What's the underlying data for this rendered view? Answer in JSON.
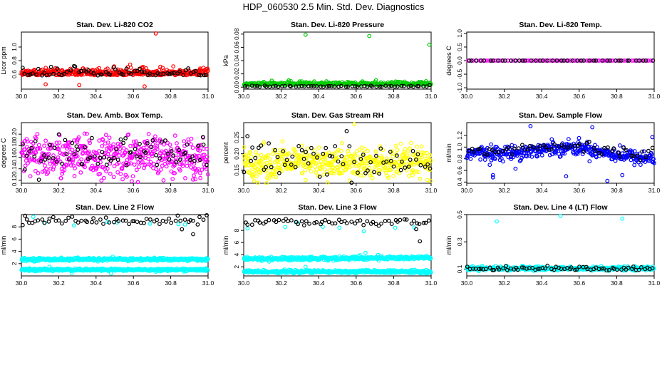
{
  "page": {
    "title": "HDP_060530  2.5 Min. Std. Dev. Diagnostics"
  },
  "chart_data": [
    {
      "type": "scatter",
      "title": "Stan. Dev. Li-820 CO2",
      "ylabel": "Licor ppm",
      "xlim": [
        30.0,
        31.0
      ],
      "ylim": [
        0.38,
        1.22
      ],
      "xticks": [
        30.0,
        30.2,
        30.4,
        30.6,
        30.8,
        31.0
      ],
      "yticks": [
        0.6,
        0.8,
        1.0
      ],
      "series": [
        {
          "color": "#ff0000",
          "n": 400,
          "base": [
            0.6,
            0.6
          ],
          "spread": 0.05,
          "skew": 1,
          "outliers": [
            [
              30.72,
              1.2
            ],
            [
              30.66,
              0.42
            ],
            [
              30.31,
              0.44
            ],
            [
              30.13,
              0.45
            ]
          ]
        },
        {
          "color": "#000000",
          "n": 70,
          "base": [
            0.6,
            0.6
          ],
          "spread": 0.06,
          "skew": 1,
          "outliers": []
        }
      ]
    },
    {
      "type": "scatter",
      "title": "Stan. Dev. Li-820 Pressure",
      "ylabel": "kPa",
      "xlim": [
        30.0,
        31.0
      ],
      "ylim": [
        -0.003,
        0.083
      ],
      "xticks": [
        30.0,
        30.2,
        30.4,
        30.6,
        30.8,
        31.0
      ],
      "yticks": [
        0.0,
        0.02,
        0.04,
        0.06,
        0.08
      ],
      "series": [
        {
          "color": "#00cc00",
          "n": 350,
          "base": [
            0.004,
            0.004
          ],
          "spread": 0.0025,
          "skew": 1,
          "outliers": [
            [
              30.33,
              0.079
            ],
            [
              30.67,
              0.077
            ],
            [
              30.99,
              0.064
            ]
          ]
        },
        {
          "color": "#000000",
          "n": 60,
          "base": [
            0.001,
            0.001
          ],
          "spread": 0.001,
          "skew": 1,
          "outliers": []
        }
      ]
    },
    {
      "type": "scatter",
      "title": "Stan. Dev. Li-820 Temp.",
      "ylabel": "degrees C",
      "xlim": [
        30.0,
        31.0
      ],
      "ylim": [
        -1.05,
        1.05
      ],
      "xticks": [
        30.0,
        30.2,
        30.4,
        30.6,
        30.8,
        31.0
      ],
      "yticks": [
        -1.0,
        -0.5,
        0.0,
        0.5,
        1.0
      ],
      "series": [
        {
          "color": "#ff00ff",
          "n": 95,
          "base": [
            0.0,
            0.0
          ],
          "spread": 0,
          "skew": 0,
          "outliers": []
        },
        {
          "color": "#000000",
          "n": 45,
          "base": [
            0.0,
            0.0
          ],
          "spread": 0,
          "skew": 0,
          "outliers": []
        }
      ]
    },
    {
      "type": "scatter",
      "title": "Stan. Dev. Amb. Box Temp.",
      "ylabel": "degrees C",
      "xlim": [
        30.0,
        31.0
      ],
      "ylim": [
        0.115,
        0.22
      ],
      "xticks": [
        30.0,
        30.2,
        30.4,
        30.6,
        30.8,
        31.0
      ],
      "yticks": [
        0.12,
        0.14,
        0.16,
        0.18,
        0.2
      ],
      "series": [
        {
          "color": "#ff00ff",
          "n": 480,
          "base": [
            0.16,
            0.16
          ],
          "spread": 0.018,
          "skew": 0,
          "outliers": []
        },
        {
          "color": "#000000",
          "n": 80,
          "base": [
            0.165,
            0.165
          ],
          "spread": 0.015,
          "skew": 0,
          "outliers": []
        }
      ]
    },
    {
      "type": "scatter",
      "title": "Stan. Dev. Gas Stream RH",
      "ylabel": "percent",
      "xlim": [
        30.0,
        31.0
      ],
      "ylim": [
        0.11,
        0.295
      ],
      "xticks": [
        30.0,
        30.2,
        30.4,
        30.6,
        30.8,
        31.0
      ],
      "yticks": [
        0.15,
        0.2,
        0.25
      ],
      "series": [
        {
          "color": "#ffff00",
          "n": 480,
          "base": [
            0.17,
            0.17
          ],
          "spread": 0.025,
          "skew": 0,
          "outliers": [
            [
              30.59,
              0.29
            ]
          ]
        },
        {
          "color": "#000000",
          "n": 70,
          "base": [
            0.175,
            0.175
          ],
          "spread": 0.03,
          "skew": 0,
          "outliers": []
        }
      ]
    },
    {
      "type": "scatter",
      "title": "Stan. Dev. Sample Flow",
      "ylabel": "ml/min",
      "xlim": [
        30.0,
        31.0
      ],
      "ylim": [
        0.38,
        1.42
      ],
      "xticks": [
        30.0,
        30.2,
        30.4,
        30.6,
        30.8,
        31.0
      ],
      "yticks": [
        0.4,
        0.6,
        0.8,
        1.0,
        1.2
      ],
      "series": [
        {
          "color": "#0000ff",
          "n": 420,
          "base": [
            0.9,
            0.8
          ],
          "spread": 0.06,
          "skew": 0,
          "hump": [
            0.15,
            0.55
          ],
          "outliers": [
            [
              30.34,
              1.36
            ],
            [
              30.67,
              1.34
            ],
            [
              30.99,
              1.17
            ],
            [
              30.14,
              0.52
            ],
            [
              30.14,
              0.48
            ],
            [
              30.53,
              0.5
            ],
            [
              30.75,
              0.42
            ],
            [
              30.83,
              0.52
            ],
            [
              30.26,
              0.63
            ]
          ]
        },
        {
          "color": "#000000",
          "n": 60,
          "base": [
            0.95,
            0.85
          ],
          "spread": 0.05,
          "skew": 0,
          "hump": [
            0.12,
            0.55
          ],
          "outliers": []
        }
      ]
    },
    {
      "type": "scatter",
      "title": "Stan. Dev. Line 2 Flow",
      "ylabel": "ml/min",
      "xlim": [
        30.0,
        31.0
      ],
      "ylim": [
        0.0,
        10.0
      ],
      "xticks": [
        30.0,
        30.2,
        30.4,
        30.6,
        30.8,
        31.0
      ],
      "yticks": [
        2,
        4,
        6,
        8
      ],
      "series": [
        {
          "color": "#00ffff",
          "n": 420,
          "base": [
            2.7,
            2.7
          ],
          "spread": 0.12,
          "skew": 0,
          "outliers": []
        },
        {
          "color": "#00ffff",
          "n": 420,
          "base": [
            1.0,
            1.0
          ],
          "spread": 0.1,
          "skew": 0,
          "outliers": [
            [
              30.15,
              1.5
            ],
            [
              30.27,
              0.5
            ],
            [
              30.48,
              0.4
            ]
          ]
        },
        {
          "color": "#00ffff",
          "n": 8,
          "base": [
            8.5,
            8.5
          ],
          "spread": 0.3,
          "skew": 0,
          "outliers": []
        },
        {
          "color": "#000000",
          "n": 60,
          "base": [
            9.0,
            9.0
          ],
          "spread": 0.35,
          "skew": 0,
          "outliers": [
            [
              30.02,
              9.8
            ],
            [
              30.92,
              6.8
            ],
            [
              30.86,
              7.6
            ]
          ]
        }
      ]
    },
    {
      "type": "scatter",
      "title": "Stan. Dev. Line 3 Flow",
      "ylabel": "ml/min",
      "xlim": [
        30.0,
        31.0
      ],
      "ylim": [
        0.5,
        10.6
      ],
      "xticks": [
        30.0,
        30.2,
        30.4,
        30.6,
        30.8,
        31.0
      ],
      "yticks": [
        2,
        4,
        6,
        8
      ],
      "series": [
        {
          "color": "#00ffff",
          "n": 420,
          "base": [
            3.3,
            3.5
          ],
          "spread": 0.15,
          "skew": 0,
          "outliers": [
            [
              30.65,
              4.3
            ],
            [
              30.62,
              3.9
            ]
          ]
        },
        {
          "color": "#00ffff",
          "n": 420,
          "base": [
            1.2,
            1.2
          ],
          "spread": 0.12,
          "skew": 0,
          "outliers": [
            [
              30.33,
              2.0
            ]
          ]
        },
        {
          "color": "#00ffff",
          "n": 8,
          "base": [
            8.3,
            8.3
          ],
          "spread": 0.4,
          "skew": 0,
          "outliers": []
        },
        {
          "color": "#000000",
          "n": 60,
          "base": [
            9.3,
            9.5
          ],
          "spread": 0.3,
          "skew": 0,
          "outliers": [
            [
              30.94,
              6.2
            ],
            [
              30.92,
              8.2
            ]
          ]
        }
      ]
    },
    {
      "type": "scatter",
      "title": "Stan. Dev. Line 4 (LT) Flow",
      "ylabel": "ml/min",
      "xlim": [
        30.0,
        31.0
      ],
      "ylim": [
        0.05,
        0.5
      ],
      "xticks": [
        30.0,
        30.2,
        30.4,
        30.6,
        30.8,
        31.0
      ],
      "yticks": [
        0.1,
        0.3,
        0.5
      ],
      "series": [
        {
          "color": "#00ffff",
          "n": 420,
          "base": [
            0.105,
            0.105
          ],
          "spread": 0.007,
          "skew": 0,
          "outliers": [
            [
              30.16,
              0.45
            ],
            [
              30.5,
              0.49
            ],
            [
              30.83,
              0.47
            ]
          ]
        },
        {
          "color": "#000000",
          "n": 70,
          "base": [
            0.105,
            0.105
          ],
          "spread": 0.007,
          "skew": 0,
          "outliers": []
        }
      ]
    }
  ]
}
